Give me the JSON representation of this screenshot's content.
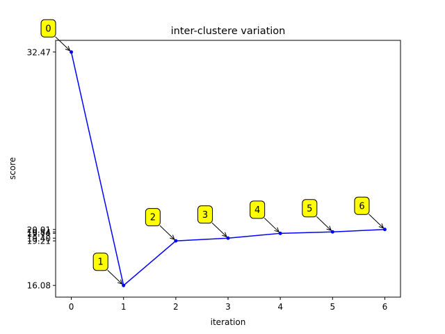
{
  "chart_data": {
    "type": "line",
    "title": "inter-clustere variation",
    "xlabel": "iteration",
    "ylabel": "score",
    "x": [
      0,
      1,
      2,
      3,
      4,
      5,
      6
    ],
    "y": [
      32.47,
      16.08,
      19.21,
      19.4,
      19.74,
      19.84,
      20.01
    ],
    "x_ticks": [
      "0",
      "1",
      "2",
      "3",
      "4",
      "5",
      "6"
    ],
    "y_ticks": [
      "32.47",
      "16.08",
      "19.21",
      "19.40",
      "19.74",
      "19.84",
      "20.01"
    ],
    "xlim": [
      -0.3,
      6.3
    ],
    "ylim": [
      15.26,
      33.29
    ],
    "annotations": [
      "0",
      "1",
      "2",
      "3",
      "4",
      "5",
      "6"
    ],
    "grid": false,
    "colors": {
      "line": "#0000ff",
      "annotation_box": "#ffff00",
      "axes": "#000000"
    }
  }
}
